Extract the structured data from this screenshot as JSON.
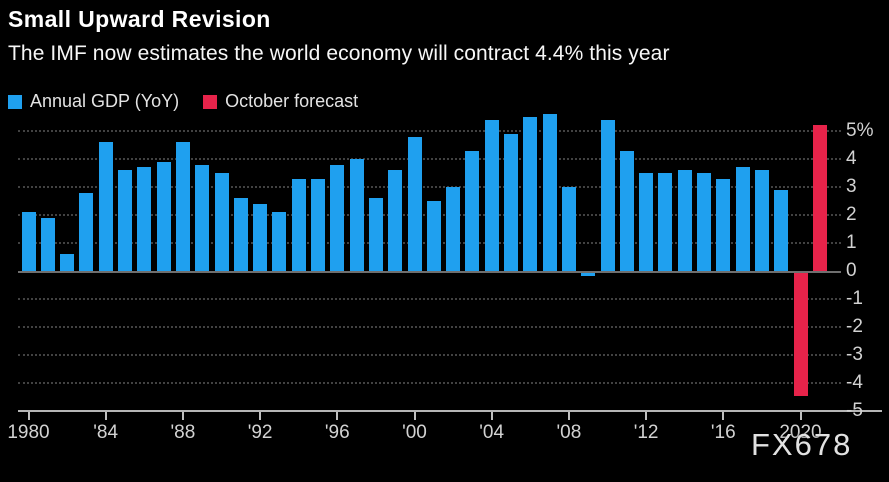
{
  "header": {
    "title": "Small Upward Revision",
    "subtitle": "The IMF now estimates the world economy will contract 4.4% this year"
  },
  "legend": {
    "items": [
      {
        "label": "Annual GDP (YoY)",
        "color": "#1fa0ef"
      },
      {
        "label": "October forecast",
        "color": "#e7234a"
      }
    ]
  },
  "watermark": "FX678",
  "chart_data": {
    "type": "bar",
    "title": "Small Upward Revision",
    "subtitle": "The IMF now estimates the world economy will contract 4.4% this year",
    "unit": "%",
    "grid": "horizontal-dotted",
    "legend_position": "top-left",
    "ylim": [
      -5,
      5
    ],
    "y_ticks": [
      5,
      4,
      3,
      2,
      1,
      0,
      -1,
      -2,
      -3,
      -4,
      -5
    ],
    "y_tick_labels": [
      "5%",
      "4",
      "3",
      "2",
      "1",
      "0",
      "-1",
      "-2",
      "-3",
      "-4",
      "-5"
    ],
    "x_ticks": [
      {
        "year": 1980,
        "label": "1980"
      },
      {
        "year": 1984,
        "label": "'84"
      },
      {
        "year": 1988,
        "label": "'88"
      },
      {
        "year": 1992,
        "label": "'92"
      },
      {
        "year": 1996,
        "label": "'96"
      },
      {
        "year": 2000,
        "label": "'00"
      },
      {
        "year": 2004,
        "label": "'04"
      },
      {
        "year": 2008,
        "label": "'08"
      },
      {
        "year": 2012,
        "label": "'12"
      },
      {
        "year": 2016,
        "label": "'16"
      },
      {
        "year": 2020,
        "label": "2020"
      }
    ],
    "series": [
      {
        "name": "Annual GDP (YoY)",
        "color": "#1fa0ef",
        "years": [
          1980,
          1981,
          1982,
          1983,
          1984,
          1985,
          1986,
          1987,
          1988,
          1989,
          1990,
          1991,
          1992,
          1993,
          1994,
          1995,
          1996,
          1997,
          1998,
          1999,
          2000,
          2001,
          2002,
          2003,
          2004,
          2005,
          2006,
          2007,
          2008,
          2009,
          2010,
          2011,
          2012,
          2013,
          2014,
          2015,
          2016,
          2017,
          2018,
          2019
        ],
        "values": [
          2.1,
          1.9,
          0.6,
          2.8,
          4.6,
          3.6,
          3.7,
          3.9,
          4.6,
          3.8,
          3.5,
          2.6,
          2.4,
          2.1,
          3.3,
          3.3,
          3.8,
          4.0,
          2.6,
          3.6,
          4.8,
          2.5,
          3.0,
          4.3,
          5.4,
          4.9,
          5.5,
          5.6,
          3.0,
          -0.1,
          5.4,
          4.3,
          3.5,
          3.5,
          3.6,
          3.5,
          3.3,
          3.7,
          3.6,
          2.9
        ]
      },
      {
        "name": "October forecast",
        "color": "#e7234a",
        "years": [
          2020,
          2021
        ],
        "values": [
          -4.4,
          5.2
        ]
      }
    ]
  }
}
